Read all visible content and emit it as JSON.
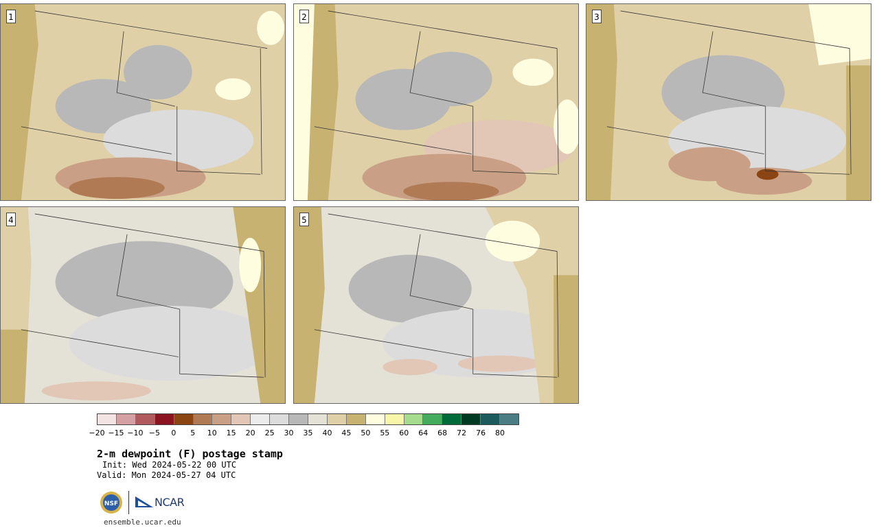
{
  "panels": [
    {
      "label": "1"
    },
    {
      "label": "2"
    },
    {
      "label": "3"
    },
    {
      "label": "4"
    },
    {
      "label": "5"
    }
  ],
  "colorbar": {
    "colors": [
      "#f3e3e3",
      "#d4a0a3",
      "#b05a5e",
      "#8a1420",
      "#8b4513",
      "#b07a55",
      "#c9a086",
      "#e2c6b6",
      "#ececec",
      "#dcdcdc",
      "#b8b8b8",
      "#e4e2d6",
      "#e0d0a8",
      "#c8b272",
      "#fffde0",
      "#f8f6a8",
      "#a6dc8e",
      "#44ac5c",
      "#006a38",
      "#003a22",
      "#1c5a5e",
      "#4a7e84"
    ],
    "ticks": [
      "−20",
      "−15",
      "−10",
      "−5",
      "0",
      "5",
      "10",
      "15",
      "20",
      "25",
      "30",
      "35",
      "40",
      "45",
      "50",
      "55",
      "60",
      "64",
      "68",
      "72",
      "76",
      "80"
    ]
  },
  "title": "2-m dewpoint (F) postage stamp",
  "init": "Init: Wed 2024-05-22 00 UTC",
  "valid": "Valid: Mon 2024-05-27 04 UTC",
  "logos": {
    "nsf": "NSF",
    "ncar": "NCAR"
  },
  "url": "ensemble.ucar.edu"
}
